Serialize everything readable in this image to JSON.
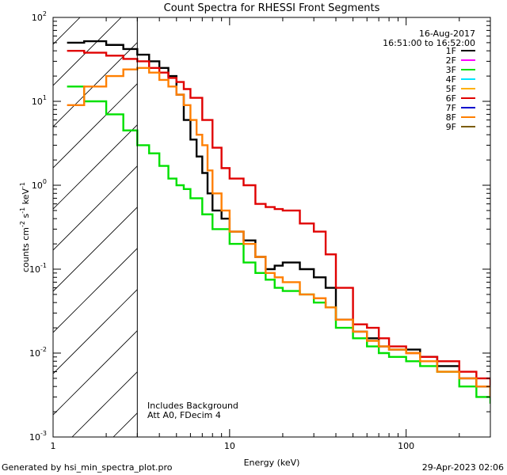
{
  "chart_data": {
    "type": "line",
    "title": "Count Spectra for RHESSI Front Segments",
    "xlabel": "Energy (keV)",
    "ylabel_main": "counts cm",
    "ylabel_exp1": "-2",
    "ylabel_mid": " s",
    "ylabel_exp2": "-1",
    "ylabel_end": " keV",
    "ylabel_exp3": "-1",
    "xscale": "log",
    "yscale": "log",
    "xlim": [
      1,
      300
    ],
    "ylim": [
      0.001,
      100
    ],
    "x_tick_labels": [
      "1",
      "10",
      "100"
    ],
    "y_tick_labels": [
      {
        "base": "10",
        "exp": "-3"
      },
      {
        "base": "10",
        "exp": "-2"
      },
      {
        "base": "10",
        "exp": "-1"
      },
      {
        "base": "10",
        "exp": "0"
      },
      {
        "base": "10",
        "exp": "1"
      },
      {
        "base": "10",
        "exp": "2"
      }
    ],
    "hatched_region_x": [
      1,
      3
    ],
    "date": "16-Aug-2017",
    "time_range": "16:51:00 to 16:52:00",
    "annotation_1": "Includes Background",
    "annotation_2": "Att A0, FDecim 4",
    "legend": [
      {
        "name": "1F",
        "color": "#000000"
      },
      {
        "name": "2F",
        "color": "#ff00ff"
      },
      {
        "name": "3F",
        "color": "#00e000"
      },
      {
        "name": "4F",
        "color": "#00e5ff"
      },
      {
        "name": "5F",
        "color": "#ffb000"
      },
      {
        "name": "6F",
        "color": "#e00000"
      },
      {
        "name": "7F",
        "color": "#0000cc"
      },
      {
        "name": "8F",
        "color": "#ff7f00"
      },
      {
        "name": "9F",
        "color": "#7a5c00"
      }
    ],
    "series": [
      {
        "name": "1F",
        "color": "#000000",
        "x": [
          1.2,
          1.5,
          2.0,
          2.5,
          3.0,
          3.5,
          4.0,
          4.5,
          5.0,
          5.5,
          6.0,
          6.5,
          7.0,
          7.5,
          8.0,
          9.0,
          10,
          12,
          14,
          16,
          18,
          20,
          25,
          30,
          35,
          40,
          50,
          60,
          70,
          80,
          100,
          120,
          150,
          200,
          250,
          300
        ],
        "y": [
          50,
          52,
          47,
          42,
          36,
          30,
          25,
          20,
          12,
          6,
          3.5,
          2.2,
          1.4,
          0.8,
          0.5,
          0.4,
          0.28,
          0.22,
          0.14,
          0.1,
          0.11,
          0.12,
          0.1,
          0.08,
          0.06,
          0.025,
          0.018,
          0.015,
          0.012,
          0.011,
          0.011,
          0.009,
          0.007,
          0.005,
          0.004,
          0.003
        ]
      },
      {
        "name": "3F",
        "color": "#00e000",
        "x": [
          1.2,
          1.5,
          2.0,
          2.5,
          3.0,
          3.5,
          4.0,
          4.5,
          5.0,
          5.5,
          6.0,
          7.0,
          8.0,
          10,
          12,
          14,
          16,
          18,
          20,
          25,
          30,
          35,
          40,
          50,
          60,
          70,
          80,
          100,
          120,
          150,
          200,
          250,
          300
        ],
        "y": [
          15,
          10,
          7,
          4.5,
          3,
          2.4,
          1.7,
          1.2,
          1.0,
          0.9,
          0.7,
          0.45,
          0.3,
          0.2,
          0.12,
          0.09,
          0.075,
          0.06,
          0.055,
          0.05,
          0.04,
          0.035,
          0.02,
          0.015,
          0.012,
          0.01,
          0.009,
          0.008,
          0.007,
          0.006,
          0.004,
          0.003,
          0.0025
        ]
      },
      {
        "name": "6F",
        "color": "#e00000",
        "x": [
          1.2,
          1.5,
          2.0,
          2.5,
          3.0,
          3.5,
          4.0,
          4.5,
          5.0,
          5.5,
          6.0,
          7.0,
          8.0,
          9.0,
          10,
          12,
          14,
          16,
          18,
          20,
          25,
          30,
          35,
          40,
          50,
          60,
          70,
          80,
          100,
          120,
          150,
          200,
          250,
          300
        ],
        "y": [
          40,
          38,
          35,
          32,
          30,
          25,
          22,
          19,
          17,
          14,
          11,
          6,
          2.8,
          1.6,
          1.2,
          1.0,
          0.6,
          0.55,
          0.52,
          0.5,
          0.35,
          0.28,
          0.15,
          0.06,
          0.022,
          0.02,
          0.015,
          0.012,
          0.01,
          0.009,
          0.008,
          0.006,
          0.005,
          0.004
        ]
      },
      {
        "name": "8F",
        "color": "#ff7f00",
        "x": [
          1.2,
          1.5,
          2.0,
          2.5,
          3.0,
          3.5,
          4.0,
          4.5,
          5.0,
          5.5,
          6.0,
          6.5,
          7.0,
          7.5,
          8.0,
          9.0,
          10,
          12,
          14,
          16,
          18,
          20,
          25,
          30,
          35,
          40,
          50,
          60,
          70,
          80,
          100,
          120,
          150,
          200,
          250,
          300
        ],
        "y": [
          9,
          15,
          20,
          24,
          25,
          22,
          18,
          15,
          12,
          9,
          6,
          4,
          3,
          1.5,
          0.8,
          0.5,
          0.28,
          0.2,
          0.14,
          0.09,
          0.08,
          0.07,
          0.05,
          0.045,
          0.035,
          0.025,
          0.018,
          0.014,
          0.012,
          0.011,
          0.01,
          0.008,
          0.006,
          0.005,
          0.004,
          0.003
        ]
      }
    ]
  },
  "footer": {
    "left": "Generated by hsi_min_spectra_plot.pro",
    "right": "29-Apr-2023 02:06"
  }
}
